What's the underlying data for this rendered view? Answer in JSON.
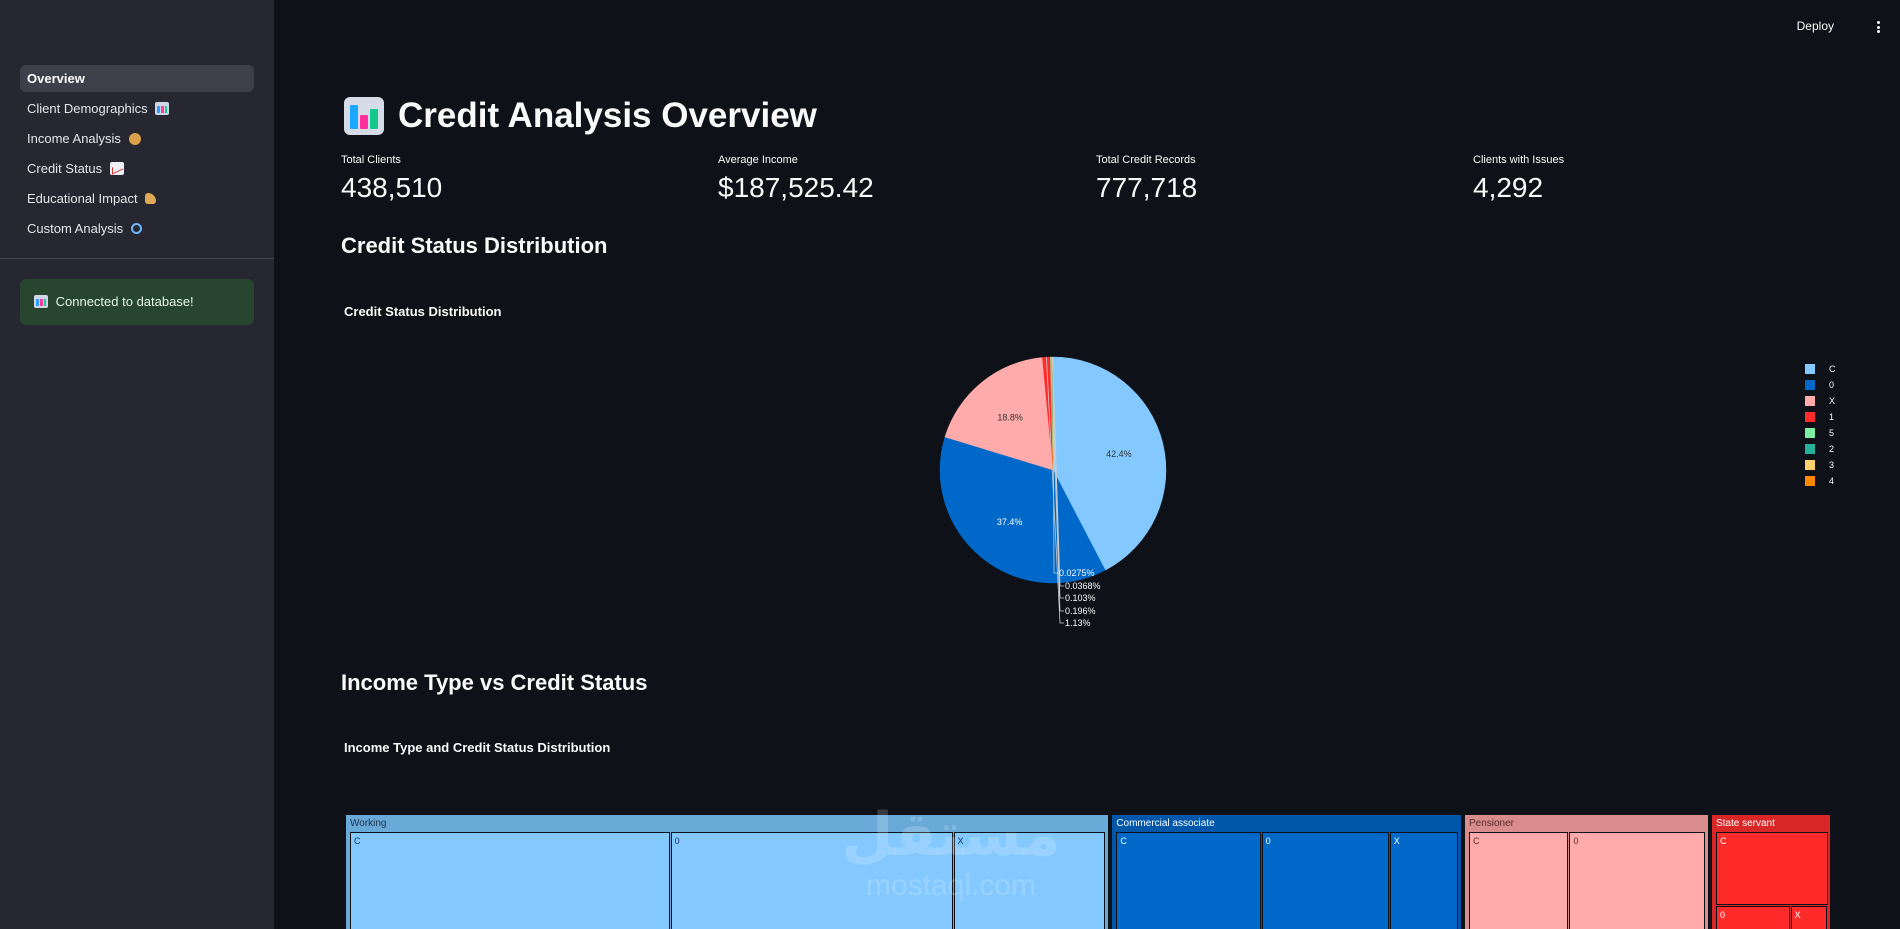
{
  "sidebar": {
    "items": [
      {
        "label": "Overview",
        "icon": "",
        "active": true
      },
      {
        "label": "Client Demographics",
        "icon": "bar-chart-icon"
      },
      {
        "label": "Income Analysis",
        "icon": "money-bag-icon"
      },
      {
        "label": "Credit Status",
        "icon": "chart-increasing-icon"
      },
      {
        "label": "Educational Impact",
        "icon": "pointing-hand-icon"
      },
      {
        "label": "Custom Analysis",
        "icon": "magnifier-icon"
      }
    ],
    "status_message": "Connected to database!"
  },
  "header": {
    "deploy_label": "Deploy"
  },
  "main": {
    "title": "Credit Analysis Overview",
    "metrics": [
      {
        "label": "Total Clients",
        "value": "438,510"
      },
      {
        "label": "Average Income",
        "value": "$187,525.42"
      },
      {
        "label": "Total Credit Records",
        "value": "777,718"
      },
      {
        "label": "Clients with Issues",
        "value": "4,292"
      }
    ],
    "section1_heading": "Credit Status Distribution",
    "section2_heading": "Income Type vs Credit Status"
  },
  "chart_data": [
    {
      "type": "pie",
      "title": "Credit Status Distribution",
      "labels": [
        "C",
        "0",
        "X",
        "1",
        "5",
        "2",
        "3",
        "4"
      ],
      "values": [
        42.4,
        37.4,
        18.8,
        1.13,
        0.196,
        0.103,
        0.0368,
        0.0275
      ],
      "display_labels": [
        "42.4%",
        "37.4%",
        "18.8%",
        "1.13%",
        "0.196%",
        "0.103%",
        "0.0368%",
        "0.0275%"
      ],
      "colors": [
        "#83c9ff",
        "#0068c9",
        "#ffabab",
        "#ff2b2b",
        "#7defa1",
        "#29b09d",
        "#ffd16a",
        "#ff8700"
      ],
      "legend": "right"
    },
    {
      "type": "treemap",
      "title": "Income Type and Credit Status Distribution",
      "groups": [
        {
          "name": "Working",
          "share": 51.5,
          "color": "#6aaad8",
          "cell_color": "#83c9ff",
          "label_color": "#1a3550",
          "cells": [
            {
              "name": "C",
              "share": 42.4
            },
            {
              "name": "0",
              "share": 37.4
            },
            {
              "name": "X",
              "share": 20.2
            }
          ]
        },
        {
          "name": "Commercial associate",
          "share": 23.7,
          "color": "#0056a8",
          "cell_color": "#0068c9",
          "label_color": "#ffffff",
          "cells": [
            {
              "name": "C",
              "share": 42.4
            },
            {
              "name": "0",
              "share": 37.4
            },
            {
              "name": "X",
              "share": 20.2
            }
          ]
        },
        {
          "name": "Pensioner",
          "share": 16.6,
          "color": "#d98c8c",
          "cell_color": "#ffabab",
          "label_color": "#5a2a2a",
          "cells": [
            {
              "name": "C",
              "share": 42.4
            },
            {
              "name": "0",
              "share": 57.6
            }
          ]
        },
        {
          "name": "State servant",
          "share": 8.2,
          "color": "#d92626",
          "cell_color": "#ff2b2b",
          "label_color": "#ffffff",
          "cells": [
            {
              "name": "C",
              "share": 55
            },
            {
              "name": "0",
              "share": 30
            },
            {
              "name": "X",
              "share": 15
            }
          ]
        }
      ]
    }
  ],
  "watermark": {
    "arabic": "مستقل",
    "latin": "mostaql.com"
  }
}
